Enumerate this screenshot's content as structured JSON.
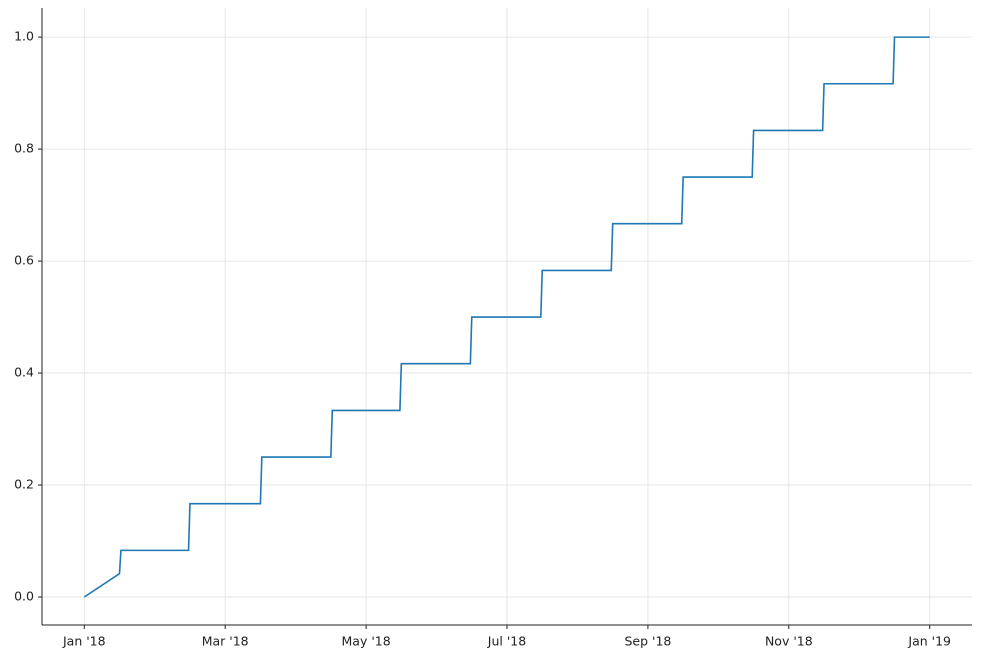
{
  "chart_data": {
    "type": "line",
    "x": [
      0,
      0.5,
      0.52,
      1.48,
      1.5,
      2.5,
      2.52,
      3.5,
      3.52,
      4.48,
      4.5,
      5.48,
      5.5,
      6.48,
      6.5,
      7.48,
      7.5,
      8.48,
      8.5,
      9.48,
      9.5,
      10.48,
      10.5,
      11.48,
      11.5,
      12
    ],
    "series": [
      {
        "color": "#1f77b4",
        "values": [
          0,
          0.0417,
          0.0833,
          0.0833,
          0.1667,
          0.1667,
          0.25,
          0.25,
          0.3333,
          0.3333,
          0.4167,
          0.4167,
          0.5,
          0.5,
          0.5833,
          0.5833,
          0.6667,
          0.6667,
          0.75,
          0.75,
          0.8333,
          0.8333,
          0.9167,
          0.9167,
          1,
          1
        ]
      }
    ],
    "xlim": [
      -0.6,
      12.6
    ],
    "xticks": [
      {
        "value": 0,
        "label": "Jan '18"
      },
      {
        "value": 2,
        "label": "Mar '18"
      },
      {
        "value": 4,
        "label": "May '18"
      },
      {
        "value": 6,
        "label": "Jul '18"
      },
      {
        "value": 8,
        "label": "Sep '18"
      },
      {
        "value": 10,
        "label": "Nov '18"
      },
      {
        "value": 12,
        "label": "Jan '19"
      }
    ],
    "ylim": [
      -0.05,
      1.052
    ],
    "yticks": [
      {
        "value": 0,
        "label": "0.0"
      },
      {
        "value": 0.2,
        "label": "0.2"
      },
      {
        "value": 0.4,
        "label": "0.4"
      },
      {
        "value": 0.6,
        "label": "0.6"
      },
      {
        "value": 0.8,
        "label": "0.8"
      },
      {
        "value": 1,
        "label": "1.0"
      }
    ],
    "grid": true
  }
}
